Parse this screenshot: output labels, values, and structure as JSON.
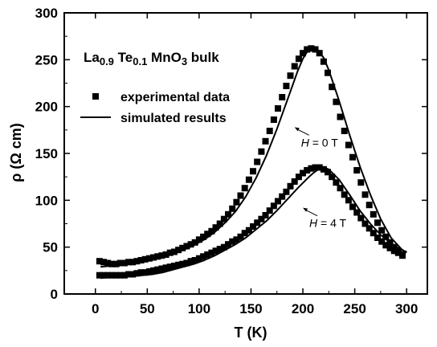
{
  "chart_data": {
    "type": "scatter",
    "title": "",
    "xlabel": "T (K)",
    "ylabel": "ρ (Ω cm)",
    "xlim": [
      -30,
      320
    ],
    "ylim": [
      0,
      300
    ],
    "xticks": [
      0,
      50,
      100,
      150,
      200,
      250,
      300
    ],
    "yticks": [
      0,
      50,
      100,
      150,
      200,
      250,
      300
    ],
    "grid": false,
    "legend_position": "upper-left",
    "sample_label": {
      "base": "La",
      "sub1": "0.9",
      "mid": " Te",
      "sub2": "0.1",
      "tail": " MnO",
      "sub3": "3",
      "suffix": " bulk"
    },
    "legend": [
      {
        "label": "experimental data",
        "marker": "square"
      },
      {
        "label": "simulated results",
        "marker": "line"
      }
    ],
    "annotations": [
      {
        "italic": "H",
        "rest": " = 0 T",
        "T": 192,
        "rho": 178
      },
      {
        "italic": "H",
        "rest": " = 4 T",
        "T": 200,
        "rho": 92
      }
    ],
    "series": [
      {
        "name": "experimental data",
        "role": "H = 0 T",
        "style": "markers",
        "x": [
          4,
          8,
          12,
          16,
          20,
          24,
          28,
          32,
          36,
          40,
          44,
          48,
          52,
          56,
          60,
          64,
          68,
          72,
          76,
          80,
          84,
          88,
          92,
          96,
          100,
          104,
          108,
          112,
          116,
          120,
          124,
          128,
          132,
          136,
          140,
          144,
          148,
          152,
          156,
          160,
          164,
          168,
          172,
          176,
          180,
          184,
          188,
          192,
          196,
          200,
          204,
          208,
          212,
          216,
          220,
          224,
          228,
          232,
          236,
          240,
          244,
          248,
          252,
          256,
          260,
          264,
          268,
          272,
          276,
          280,
          284,
          288,
          292,
          296
        ],
        "y": [
          35,
          34,
          33,
          32,
          32,
          33,
          33,
          34,
          34,
          35,
          36,
          37,
          38,
          39,
          40,
          41,
          42,
          44,
          45,
          47,
          49,
          51,
          53,
          55,
          58,
          61,
          64,
          67,
          71,
          75,
          80,
          85,
          91,
          98,
          105,
          113,
          122,
          131,
          141,
          152,
          163,
          174,
          186,
          198,
          210,
          222,
          233,
          243,
          251,
          257,
          261,
          262,
          261,
          257,
          248,
          236,
          221,
          205,
          189,
          174,
          159,
          146,
          132,
          119,
          106,
          95,
          85,
          76,
          68,
          61,
          55,
          50,
          45,
          41
        ]
      },
      {
        "name": "experimental data",
        "role": "H = 4 T",
        "style": "markers",
        "x": [
          4,
          8,
          12,
          16,
          20,
          24,
          28,
          32,
          36,
          40,
          44,
          48,
          52,
          56,
          60,
          64,
          68,
          72,
          76,
          80,
          84,
          88,
          92,
          96,
          100,
          104,
          108,
          112,
          116,
          120,
          124,
          128,
          132,
          136,
          140,
          144,
          148,
          152,
          156,
          160,
          164,
          168,
          172,
          176,
          180,
          184,
          188,
          192,
          196,
          200,
          204,
          208,
          212,
          216,
          220,
          224,
          228,
          232,
          236,
          240,
          244,
          248,
          252,
          256,
          260,
          264,
          268,
          272,
          276,
          280,
          284,
          288,
          292,
          296
        ],
        "y": [
          20,
          20,
          20,
          20,
          20,
          20,
          20,
          21,
          21,
          22,
          23,
          23,
          24,
          25,
          26,
          27,
          28,
          29,
          30,
          31,
          32,
          33,
          35,
          36,
          38,
          40,
          42,
          44,
          46,
          48,
          50,
          53,
          56,
          58,
          61,
          65,
          68,
          72,
          76,
          80,
          84,
          89,
          94,
          99,
          104,
          109,
          115,
          120,
          125,
          129,
          132,
          134,
          135,
          135,
          133,
          130,
          125,
          119,
          113,
          106,
          100,
          93,
          87,
          81,
          75,
          70,
          65,
          60,
          56,
          52,
          49,
          46,
          44,
          42
        ]
      },
      {
        "name": "simulated results",
        "role": "H = 0 T",
        "style": "line",
        "x": [
          5,
          15,
          25,
          35,
          45,
          55,
          65,
          75,
          85,
          95,
          105,
          115,
          125,
          135,
          145,
          155,
          165,
          175,
          185,
          195,
          200,
          205,
          210,
          215,
          220,
          225,
          235,
          245,
          255,
          265,
          275,
          285,
          295,
          300
        ],
        "y": [
          29,
          30,
          31,
          33,
          35,
          37,
          40,
          43,
          47,
          52,
          58,
          66,
          76,
          88,
          104,
          124,
          148,
          176,
          207,
          238,
          251,
          260,
          263,
          260,
          252,
          239,
          206,
          170,
          136,
          106,
          80,
          60,
          48,
          44
        ]
      },
      {
        "name": "simulated results",
        "role": "H = 4 T",
        "style": "line",
        "x": [
          5,
          15,
          25,
          35,
          45,
          55,
          65,
          75,
          85,
          95,
          105,
          115,
          125,
          135,
          145,
          155,
          165,
          175,
          185,
          195,
          205,
          210,
          215,
          220,
          225,
          235,
          245,
          255,
          265,
          275,
          285,
          295,
          300
        ],
        "y": [
          17,
          18,
          18,
          19,
          20,
          21,
          23,
          26,
          29,
          32,
          36,
          41,
          47,
          53,
          60,
          69,
          78,
          89,
          101,
          113,
          124,
          129,
          133,
          135,
          133,
          122,
          106,
          89,
          75,
          63,
          54,
          47,
          45
        ]
      }
    ]
  }
}
